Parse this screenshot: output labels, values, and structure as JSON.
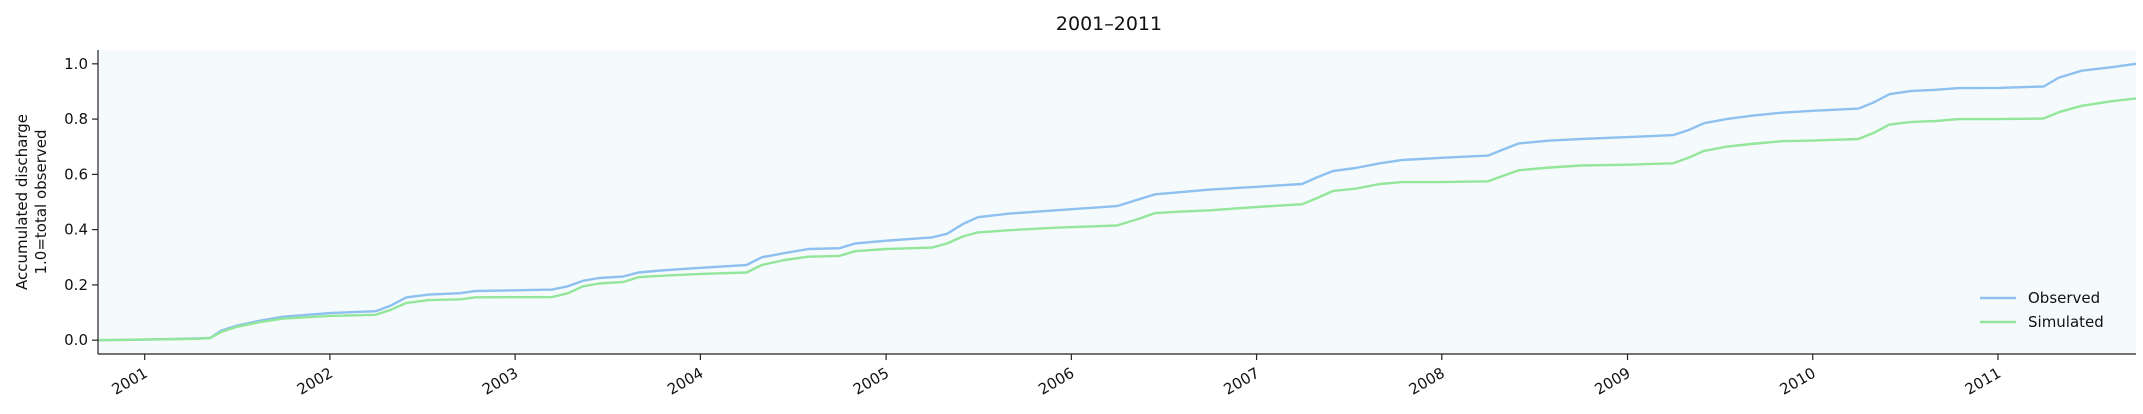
{
  "chart_data": {
    "type": "line",
    "title": "2001–2011",
    "ylabel_lines": [
      "Accumulated discharge",
      "1.0=total observed"
    ],
    "xlabel": "",
    "xlim": [
      "2000-10-01",
      "2011-09-30"
    ],
    "ylim": [
      -0.05,
      1.05
    ],
    "x_ticks": [
      "2001",
      "2002",
      "2003",
      "2004",
      "2005",
      "2006",
      "2007",
      "2008",
      "2009",
      "2010",
      "2011"
    ],
    "y_ticks": [
      "0.0",
      "0.2",
      "0.4",
      "0.6",
      "0.8",
      "1.0"
    ],
    "y_tick_values": [
      0.0,
      0.2,
      0.4,
      0.6,
      0.8,
      1.0
    ],
    "grid": false,
    "legend_position": "lower-right",
    "plot_background": "#f5fafc",
    "series": [
      {
        "name": "Observed",
        "color": "#8ec1f0",
        "points": [
          [
            "2000-10-01",
            0.0
          ],
          [
            "2001-01-01",
            0.002
          ],
          [
            "2001-04-15",
            0.006
          ],
          [
            "2001-05-10",
            0.008
          ],
          [
            "2001-06-01",
            0.035
          ],
          [
            "2001-07-01",
            0.052
          ],
          [
            "2001-08-15",
            0.07
          ],
          [
            "2001-10-01",
            0.085
          ],
          [
            "2002-01-01",
            0.098
          ],
          [
            "2002-04-01",
            0.105
          ],
          [
            "2002-05-01",
            0.125
          ],
          [
            "2002-06-01",
            0.155
          ],
          [
            "2002-07-15",
            0.165
          ],
          [
            "2002-09-15",
            0.17
          ],
          [
            "2002-10-15",
            0.178
          ],
          [
            "2003-03-15",
            0.183
          ],
          [
            "2003-04-15",
            0.195
          ],
          [
            "2003-05-15",
            0.215
          ],
          [
            "2003-06-15",
            0.225
          ],
          [
            "2003-08-01",
            0.23
          ],
          [
            "2003-09-01",
            0.245
          ],
          [
            "2003-10-15",
            0.252
          ],
          [
            "2004-01-01",
            0.262
          ],
          [
            "2004-04-01",
            0.272
          ],
          [
            "2004-05-01",
            0.3
          ],
          [
            "2004-06-15",
            0.315
          ],
          [
            "2004-08-01",
            0.33
          ],
          [
            "2004-10-01",
            0.333
          ],
          [
            "2004-11-01",
            0.35
          ],
          [
            "2005-01-01",
            0.36
          ],
          [
            "2005-04-01",
            0.372
          ],
          [
            "2005-05-01",
            0.385
          ],
          [
            "2005-06-01",
            0.42
          ],
          [
            "2005-07-01",
            0.445
          ],
          [
            "2005-09-01",
            0.458
          ],
          [
            "2005-12-01",
            0.47
          ],
          [
            "2006-04-01",
            0.485
          ],
          [
            "2006-05-15",
            0.51
          ],
          [
            "2006-06-15",
            0.528
          ],
          [
            "2006-08-01",
            0.535
          ],
          [
            "2006-10-01",
            0.545
          ],
          [
            "2007-01-01",
            0.555
          ],
          [
            "2007-04-01",
            0.565
          ],
          [
            "2007-05-01",
            0.59
          ],
          [
            "2007-06-01",
            0.612
          ],
          [
            "2007-07-15",
            0.623
          ],
          [
            "2007-09-01",
            0.64
          ],
          [
            "2007-10-15",
            0.652
          ],
          [
            "2008-01-01",
            0.66
          ],
          [
            "2008-04-01",
            0.668
          ],
          [
            "2008-05-01",
            0.69
          ],
          [
            "2008-06-01",
            0.712
          ],
          [
            "2008-08-01",
            0.722
          ],
          [
            "2008-10-01",
            0.728
          ],
          [
            "2009-01-01",
            0.735
          ],
          [
            "2009-04-01",
            0.742
          ],
          [
            "2009-05-01",
            0.76
          ],
          [
            "2009-06-01",
            0.785
          ],
          [
            "2009-07-15",
            0.8
          ],
          [
            "2009-09-01",
            0.812
          ],
          [
            "2009-11-01",
            0.823
          ],
          [
            "2010-01-01",
            0.83
          ],
          [
            "2010-04-01",
            0.838
          ],
          [
            "2010-05-01",
            0.86
          ],
          [
            "2010-06-01",
            0.89
          ],
          [
            "2010-07-15",
            0.902
          ],
          [
            "2010-09-01",
            0.906
          ],
          [
            "2010-10-15",
            0.912
          ],
          [
            "2011-01-01",
            0.913
          ],
          [
            "2011-04-01",
            0.918
          ],
          [
            "2011-05-01",
            0.95
          ],
          [
            "2011-06-15",
            0.975
          ],
          [
            "2011-08-15",
            0.988
          ],
          [
            "2011-09-30",
            1.0
          ]
        ]
      },
      {
        "name": "Simulated",
        "color": "#93e69a",
        "points": [
          [
            "2000-10-01",
            0.0
          ],
          [
            "2001-01-01",
            0.002
          ],
          [
            "2001-04-15",
            0.005
          ],
          [
            "2001-05-10",
            0.008
          ],
          [
            "2001-06-01",
            0.03
          ],
          [
            "2001-07-01",
            0.048
          ],
          [
            "2001-08-15",
            0.065
          ],
          [
            "2001-10-01",
            0.078
          ],
          [
            "2002-01-01",
            0.088
          ],
          [
            "2002-04-01",
            0.092
          ],
          [
            "2002-05-01",
            0.11
          ],
          [
            "2002-06-01",
            0.135
          ],
          [
            "2002-07-15",
            0.145
          ],
          [
            "2002-09-15",
            0.148
          ],
          [
            "2002-10-15",
            0.155
          ],
          [
            "2003-03-15",
            0.156
          ],
          [
            "2003-04-15",
            0.17
          ],
          [
            "2003-05-15",
            0.195
          ],
          [
            "2003-06-15",
            0.205
          ],
          [
            "2003-08-01",
            0.21
          ],
          [
            "2003-09-01",
            0.228
          ],
          [
            "2003-10-15",
            0.233
          ],
          [
            "2004-01-01",
            0.24
          ],
          [
            "2004-04-01",
            0.245
          ],
          [
            "2004-05-01",
            0.272
          ],
          [
            "2004-06-15",
            0.29
          ],
          [
            "2004-08-01",
            0.302
          ],
          [
            "2004-10-01",
            0.305
          ],
          [
            "2004-11-01",
            0.322
          ],
          [
            "2005-01-01",
            0.33
          ],
          [
            "2005-04-01",
            0.335
          ],
          [
            "2005-05-01",
            0.35
          ],
          [
            "2005-06-01",
            0.375
          ],
          [
            "2005-07-01",
            0.39
          ],
          [
            "2005-09-01",
            0.398
          ],
          [
            "2005-12-01",
            0.407
          ],
          [
            "2006-04-01",
            0.415
          ],
          [
            "2006-05-15",
            0.44
          ],
          [
            "2006-06-15",
            0.46
          ],
          [
            "2006-08-01",
            0.465
          ],
          [
            "2006-10-01",
            0.47
          ],
          [
            "2007-01-01",
            0.482
          ],
          [
            "2007-04-01",
            0.492
          ],
          [
            "2007-05-01",
            0.515
          ],
          [
            "2007-06-01",
            0.54
          ],
          [
            "2007-07-15",
            0.548
          ],
          [
            "2007-09-01",
            0.565
          ],
          [
            "2007-10-15",
            0.572
          ],
          [
            "2008-01-01",
            0.572
          ],
          [
            "2008-04-01",
            0.575
          ],
          [
            "2008-05-01",
            0.595
          ],
          [
            "2008-06-01",
            0.615
          ],
          [
            "2008-08-01",
            0.625
          ],
          [
            "2008-10-01",
            0.632
          ],
          [
            "2009-01-01",
            0.635
          ],
          [
            "2009-04-01",
            0.64
          ],
          [
            "2009-05-01",
            0.66
          ],
          [
            "2009-06-01",
            0.685
          ],
          [
            "2009-07-15",
            0.7
          ],
          [
            "2009-09-01",
            0.71
          ],
          [
            "2009-11-01",
            0.72
          ],
          [
            "2010-01-01",
            0.722
          ],
          [
            "2010-04-01",
            0.728
          ],
          [
            "2010-05-01",
            0.75
          ],
          [
            "2010-06-01",
            0.78
          ],
          [
            "2010-07-15",
            0.79
          ],
          [
            "2010-09-01",
            0.793
          ],
          [
            "2010-10-15",
            0.8
          ],
          [
            "2011-01-01",
            0.8
          ],
          [
            "2011-04-01",
            0.802
          ],
          [
            "2011-05-01",
            0.825
          ],
          [
            "2011-06-15",
            0.848
          ],
          [
            "2011-08-15",
            0.865
          ],
          [
            "2011-09-30",
            0.875
          ]
        ]
      }
    ]
  }
}
